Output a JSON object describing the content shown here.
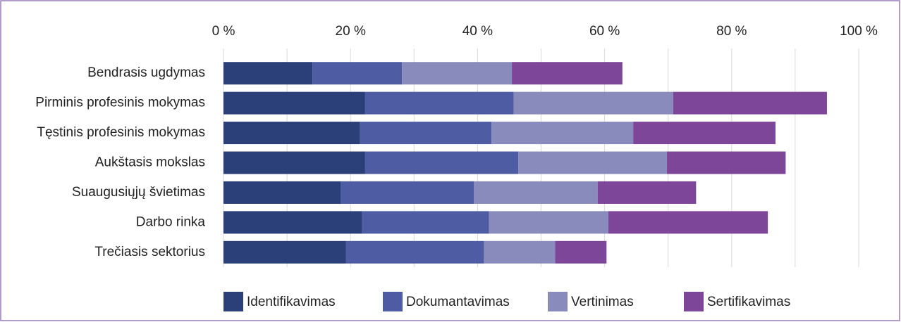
{
  "chart_data": {
    "type": "stacked_barh",
    "categories": [
      "Bendrasis ugdymas",
      "Pirminis profesinis mokymas",
      "Tęstinis profesinis mokymas",
      "Aukštasis mokslas",
      "Suaugusiųjų švietimas",
      "Darbo rinka",
      "Trečiasis sektorius"
    ],
    "series": [
      {
        "name": "Identifikavimas",
        "color": "#2b3f78",
        "values": [
          14.0,
          22.3,
          21.5,
          22.3,
          18.5,
          21.8,
          19.3
        ]
      },
      {
        "name": "Dokumantavimas",
        "color": "#4d5ca3",
        "values": [
          14.1,
          23.4,
          20.7,
          24.1,
          20.9,
          20.0,
          21.7
        ]
      },
      {
        "name": "Vertinimas",
        "color": "#8a8bbd",
        "values": [
          17.3,
          25.1,
          22.3,
          23.4,
          19.5,
          18.8,
          11.2
        ]
      },
      {
        "name": "Sertifikavimas",
        "color": "#7e4699",
        "values": [
          17.4,
          24.2,
          22.4,
          18.7,
          15.5,
          25.1,
          8.1
        ]
      }
    ],
    "xlim": [
      0,
      100
    ],
    "xticks": [
      {
        "value": 0,
        "label": "0 %"
      },
      {
        "value": 20,
        "label": "20 %"
      },
      {
        "value": 40,
        "label": "40 %"
      },
      {
        "value": 60,
        "label": "60 %"
      },
      {
        "value": 80,
        "label": "80 %"
      },
      {
        "value": 100,
        "label": "100 %"
      }
    ],
    "minor_xticks": [
      10,
      30,
      50,
      70,
      90
    ],
    "grid": true,
    "legend": "bottom"
  }
}
